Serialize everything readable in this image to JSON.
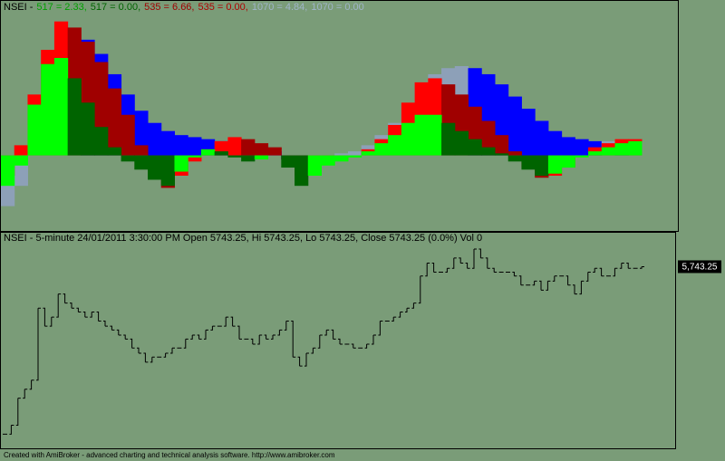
{
  "chart_data": [
    {
      "type": "bar",
      "header": [
        {
          "text": "NSEI -",
          "color": "#000000"
        },
        {
          "text": "517 = 2.33,",
          "color": "#00a000"
        },
        {
          "text": "517 = 0.00,",
          "color": "#006400"
        },
        {
          "text": "535 = 6.66,",
          "color": "#a00000"
        },
        {
          "text": "535 = 0.00,",
          "color": "#b00000"
        },
        {
          "text": "1070 = 4.84,",
          "color": "#9fb4c8"
        },
        {
          "text": "1070 = 0.00",
          "color": "#9fb4c8"
        }
      ],
      "ylim": [
        -3.5,
        7.3
      ],
      "series": [
        {
          "up_color": "#8da0b8",
          "down_color": "#0000ff",
          "values": [
            -2.5,
            -1.5,
            1.5,
            3.8,
            5.2,
            5.8,
            5.7,
            5.0,
            4.0,
            3.0,
            2.2,
            1.6,
            1.2,
            1.0,
            0.9,
            0.8,
            0.7,
            0.6,
            0.5,
            0.4,
            0.2,
            -0.2,
            -0.3,
            -0.1,
            0,
            0.1,
            0.2,
            0.5,
            1.0,
            1.6,
            2.4,
            3.3,
            4.0,
            4.3,
            4.4,
            4.3,
            4.0,
            3.5,
            2.9,
            2.3,
            1.7,
            1.2,
            0.9,
            0.8,
            0.7,
            0.7,
            0.6,
            0.6
          ]
        },
        {
          "up_color": "#ff0000",
          "down_color": "#a00000",
          "values": [
            -1.0,
            0.5,
            3.0,
            5.2,
            6.6,
            6.3,
            5.6,
            4.6,
            3.3,
            2.0,
            0.5,
            -0.8,
            -1.6,
            -1.0,
            -0.3,
            0.3,
            0.7,
            0.9,
            0.8,
            0.6,
            0.4,
            -0.2,
            -1.0,
            -0.6,
            -0.3,
            -0.2,
            0,
            0.3,
            0.8,
            1.5,
            2.6,
            3.6,
            3.8,
            3.5,
            3.0,
            2.4,
            1.7,
            1.0,
            0.2,
            -0.6,
            -1.1,
            -1.0,
            -0.6,
            0,
            0.4,
            0.6,
            0.8,
            0.8
          ]
        },
        {
          "up_color": "#00ff00",
          "down_color": "#006400",
          "values": [
            -1.5,
            -0.5,
            2.5,
            4.5,
            4.8,
            3.8,
            2.6,
            1.4,
            0.4,
            -0.3,
            -0.7,
            -1.2,
            -1.5,
            -0.8,
            -0.1,
            0.3,
            0.2,
            -0.1,
            -0.3,
            -0.2,
            0,
            -0.6,
            -1.5,
            -1.0,
            -0.5,
            -0.3,
            -0.1,
            0.2,
            0.6,
            1.0,
            1.6,
            2.0,
            2.0,
            1.6,
            1.2,
            0.8,
            0.4,
            0.1,
            -0.3,
            -0.7,
            -1.0,
            -0.9,
            -0.6,
            -0.1,
            0.2,
            0.4,
            0.6,
            0.7
          ]
        }
      ]
    },
    {
      "type": "line",
      "title": "NSEI - 5-minute 24/01/2011 3:30:00 PM Open 5743.25, Hi 5743.25, Lo 5743.25, Close 5743.25 (0.0%) Vol 0",
      "color": "#000000",
      "ylim": [
        5602,
        5764
      ],
      "values": [
        5613,
        5620,
        5641,
        5648,
        5655,
        5711,
        5697,
        5704,
        5722,
        5715,
        5711,
        5708,
        5704,
        5708,
        5701,
        5697,
        5694,
        5690,
        5687,
        5680,
        5676,
        5669,
        5673,
        5673,
        5676,
        5680,
        5680,
        5687,
        5690,
        5687,
        5694,
        5697,
        5697,
        5704,
        5697,
        5687,
        5687,
        5683,
        5690,
        5687,
        5690,
        5694,
        5701,
        5673,
        5666,
        5676,
        5680,
        5690,
        5694,
        5687,
        5683,
        5683,
        5680,
        5680,
        5683,
        5690,
        5701,
        5701,
        5704,
        5708,
        5711,
        5715,
        5736,
        5746,
        5739,
        5739,
        5742,
        5750,
        5746,
        5742,
        5757,
        5750,
        5742,
        5739,
        5739,
        5739,
        5736,
        5729,
        5729,
        5732,
        5725,
        5732,
        5736,
        5736,
        5729,
        5722,
        5732,
        5739,
        5742,
        5736,
        5736,
        5742,
        5746,
        5742,
        5742,
        5743.25
      ],
      "last_label": {
        "value": 5743.25,
        "label": "5,743.25"
      }
    }
  ],
  "footer": "Created with AmiBroker - advanced charting and technical analysis software. http://www.amibroker.com"
}
